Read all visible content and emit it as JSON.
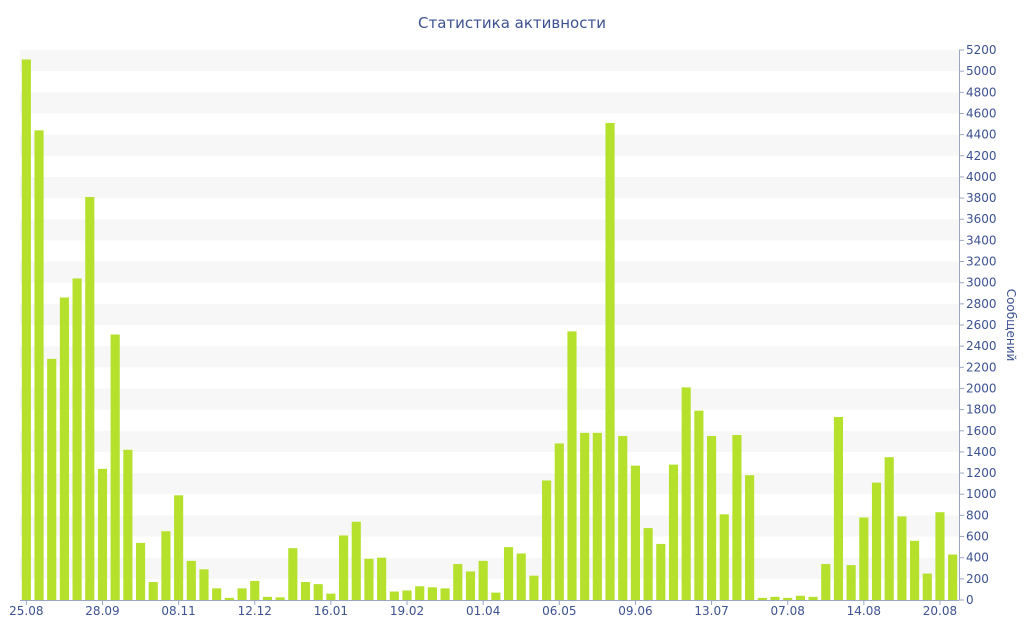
{
  "chart_data": {
    "type": "bar",
    "title": "Статистика активности",
    "ylabel": "Сообщений",
    "xlabel": "",
    "ylim": [
      0,
      5200
    ],
    "y_ticks": [
      0,
      200,
      400,
      600,
      800,
      1000,
      1200,
      1400,
      1600,
      1800,
      2000,
      2200,
      2400,
      2600,
      2800,
      3000,
      3200,
      3400,
      3600,
      3800,
      4000,
      4200,
      4400,
      4600,
      4800,
      5000,
      5200
    ],
    "x_tick_labels": [
      {
        "index": 0,
        "label": "25.08"
      },
      {
        "index": 6,
        "label": "28.09"
      },
      {
        "index": 12,
        "label": "08.11"
      },
      {
        "index": 18,
        "label": "12.12"
      },
      {
        "index": 24,
        "label": "16.01"
      },
      {
        "index": 30,
        "label": "19.02"
      },
      {
        "index": 36,
        "label": "01.04"
      },
      {
        "index": 42,
        "label": "06.05"
      },
      {
        "index": 48,
        "label": "09.06"
      },
      {
        "index": 54,
        "label": "13.07"
      },
      {
        "index": 60,
        "label": "07.08"
      },
      {
        "index": 66,
        "label": "14.08"
      },
      {
        "index": 72,
        "label": "20.08"
      }
    ],
    "grid": "horizontal bands",
    "y_axis_side": "right",
    "bar_color": "#b5e02c",
    "values": [
      5110,
      4440,
      2280,
      2860,
      3040,
      3810,
      1240,
      2510,
      1420,
      540,
      170,
      650,
      990,
      370,
      290,
      110,
      20,
      110,
      180,
      30,
      25,
      490,
      170,
      150,
      60,
      610,
      740,
      390,
      400,
      80,
      90,
      130,
      120,
      110,
      340,
      270,
      370,
      70,
      500,
      440,
      230,
      1130,
      1480,
      2540,
      1580,
      1580,
      4510,
      1550,
      1270,
      680,
      530,
      1280,
      2010,
      1790,
      1550,
      810,
      1560,
      1180,
      20,
      30,
      20,
      40,
      30,
      340,
      1730,
      330,
      780,
      1110,
      1350,
      790,
      560,
      250,
      830,
      430
    ]
  }
}
